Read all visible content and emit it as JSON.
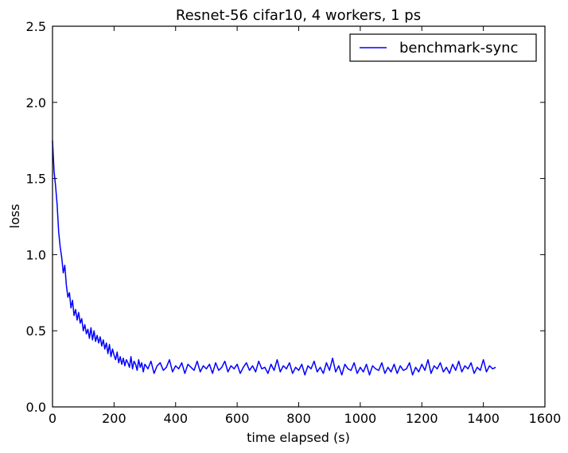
{
  "chart_data": {
    "type": "line",
    "title": "Resnet-56 cifar10, 4 workers, 1 ps",
    "xlabel": "time elapsed (s)",
    "ylabel": "loss",
    "xlim": [
      0,
      1600
    ],
    "ylim": [
      0.0,
      2.5
    ],
    "xticks": [
      0,
      200,
      400,
      600,
      800,
      1000,
      1200,
      1400,
      1600
    ],
    "xtick_labels": [
      "0",
      "200",
      "400",
      "600",
      "800",
      "1000",
      "1200",
      "1400",
      "1600"
    ],
    "yticks": [
      0.0,
      0.5,
      1.0,
      1.5,
      2.0,
      2.5
    ],
    "ytick_labels": [
      "0.0",
      "0.5",
      "1.0",
      "1.5",
      "2.0",
      "2.5"
    ],
    "grid": false,
    "legend": {
      "position": "top-right"
    },
    "series": [
      {
        "name": "benchmark-sync",
        "color": "#0000ff",
        "x": [
          0,
          5,
          10,
          15,
          20,
          25,
          30,
          35,
          40,
          45,
          50,
          55,
          60,
          65,
          70,
          75,
          80,
          85,
          90,
          95,
          100,
          105,
          110,
          115,
          120,
          125,
          130,
          135,
          140,
          145,
          150,
          155,
          160,
          165,
          170,
          175,
          180,
          185,
          190,
          195,
          200,
          205,
          210,
          215,
          220,
          225,
          230,
          235,
          240,
          245,
          250,
          255,
          260,
          265,
          270,
          275,
          280,
          285,
          290,
          295,
          300,
          310,
          320,
          330,
          340,
          350,
          360,
          370,
          380,
          390,
          400,
          410,
          420,
          430,
          440,
          450,
          460,
          470,
          480,
          490,
          500,
          510,
          520,
          530,
          540,
          550,
          560,
          570,
          580,
          590,
          600,
          610,
          620,
          630,
          640,
          650,
          660,
          670,
          680,
          690,
          700,
          710,
          720,
          730,
          740,
          750,
          760,
          770,
          780,
          790,
          800,
          810,
          820,
          830,
          840,
          850,
          860,
          870,
          880,
          890,
          900,
          910,
          920,
          930,
          940,
          950,
          960,
          970,
          980,
          990,
          1000,
          1010,
          1020,
          1030,
          1040,
          1050,
          1060,
          1070,
          1080,
          1090,
          1100,
          1110,
          1120,
          1130,
          1140,
          1150,
          1160,
          1170,
          1180,
          1190,
          1200,
          1210,
          1220,
          1230,
          1240,
          1250,
          1260,
          1270,
          1280,
          1290,
          1300,
          1310,
          1320,
          1330,
          1340,
          1350,
          1360,
          1370,
          1380,
          1390,
          1400,
          1410,
          1420,
          1430,
          1440
        ],
        "y": [
          1.75,
          1.55,
          1.45,
          1.33,
          1.15,
          1.05,
          0.98,
          0.88,
          0.93,
          0.8,
          0.72,
          0.75,
          0.65,
          0.7,
          0.6,
          0.64,
          0.57,
          0.62,
          0.55,
          0.58,
          0.5,
          0.54,
          0.48,
          0.51,
          0.45,
          0.52,
          0.44,
          0.5,
          0.43,
          0.47,
          0.42,
          0.46,
          0.4,
          0.44,
          0.38,
          0.42,
          0.35,
          0.41,
          0.33,
          0.38,
          0.34,
          0.31,
          0.36,
          0.29,
          0.33,
          0.28,
          0.32,
          0.27,
          0.31,
          0.29,
          0.26,
          0.33,
          0.25,
          0.3,
          0.28,
          0.24,
          0.31,
          0.26,
          0.29,
          0.23,
          0.28,
          0.25,
          0.3,
          0.22,
          0.27,
          0.29,
          0.24,
          0.26,
          0.31,
          0.23,
          0.27,
          0.25,
          0.29,
          0.22,
          0.28,
          0.26,
          0.24,
          0.3,
          0.23,
          0.27,
          0.25,
          0.28,
          0.22,
          0.29,
          0.24,
          0.26,
          0.3,
          0.23,
          0.27,
          0.25,
          0.28,
          0.22,
          0.26,
          0.29,
          0.24,
          0.27,
          0.23,
          0.3,
          0.25,
          0.26,
          0.22,
          0.28,
          0.24,
          0.31,
          0.23,
          0.27,
          0.25,
          0.29,
          0.22,
          0.26,
          0.24,
          0.28,
          0.21,
          0.27,
          0.25,
          0.3,
          0.23,
          0.26,
          0.22,
          0.29,
          0.24,
          0.32,
          0.23,
          0.27,
          0.21,
          0.28,
          0.25,
          0.24,
          0.29,
          0.22,
          0.26,
          0.23,
          0.28,
          0.21,
          0.27,
          0.25,
          0.24,
          0.29,
          0.22,
          0.26,
          0.23,
          0.28,
          0.22,
          0.27,
          0.24,
          0.25,
          0.29,
          0.21,
          0.26,
          0.23,
          0.28,
          0.24,
          0.31,
          0.22,
          0.27,
          0.25,
          0.29,
          0.23,
          0.26,
          0.22,
          0.28,
          0.24,
          0.3,
          0.23,
          0.27,
          0.25,
          0.29,
          0.22,
          0.26,
          0.24,
          0.31,
          0.23,
          0.27,
          0.25,
          0.26
        ]
      }
    ]
  }
}
